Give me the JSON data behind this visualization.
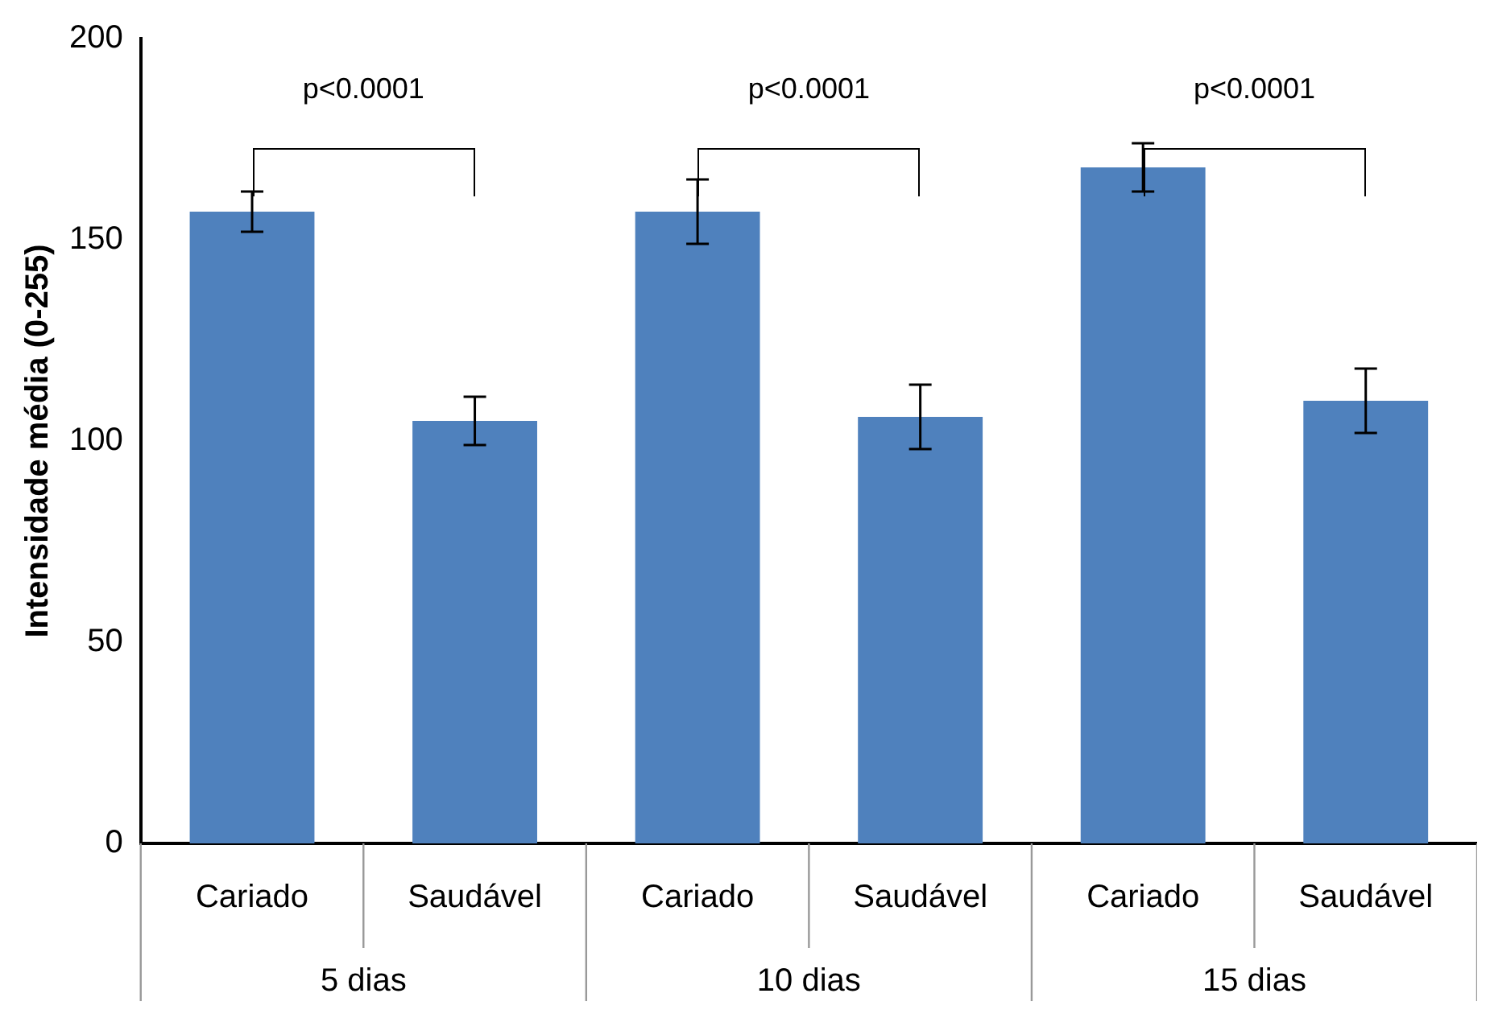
{
  "chart_data": {
    "type": "bar",
    "ylabel": "Intensidade média (0-255)",
    "categories": [
      "Cariado",
      "Saudável",
      "Cariado",
      "Saudável",
      "Cariado",
      "Saudável"
    ],
    "values": [
      157,
      105,
      157,
      106,
      168,
      110
    ],
    "errors": [
      5,
      6,
      8,
      8,
      6,
      8
    ],
    "color": "#4f81bd",
    "ylim": [
      0,
      200
    ],
    "yticks": [
      0,
      50,
      100,
      150,
      200
    ],
    "grid": false,
    "annotations": [
      "p<0.0001",
      "p<0.0001",
      "p<0.0001",
      "5 dias",
      "10 dias",
      "15 dias"
    ]
  }
}
